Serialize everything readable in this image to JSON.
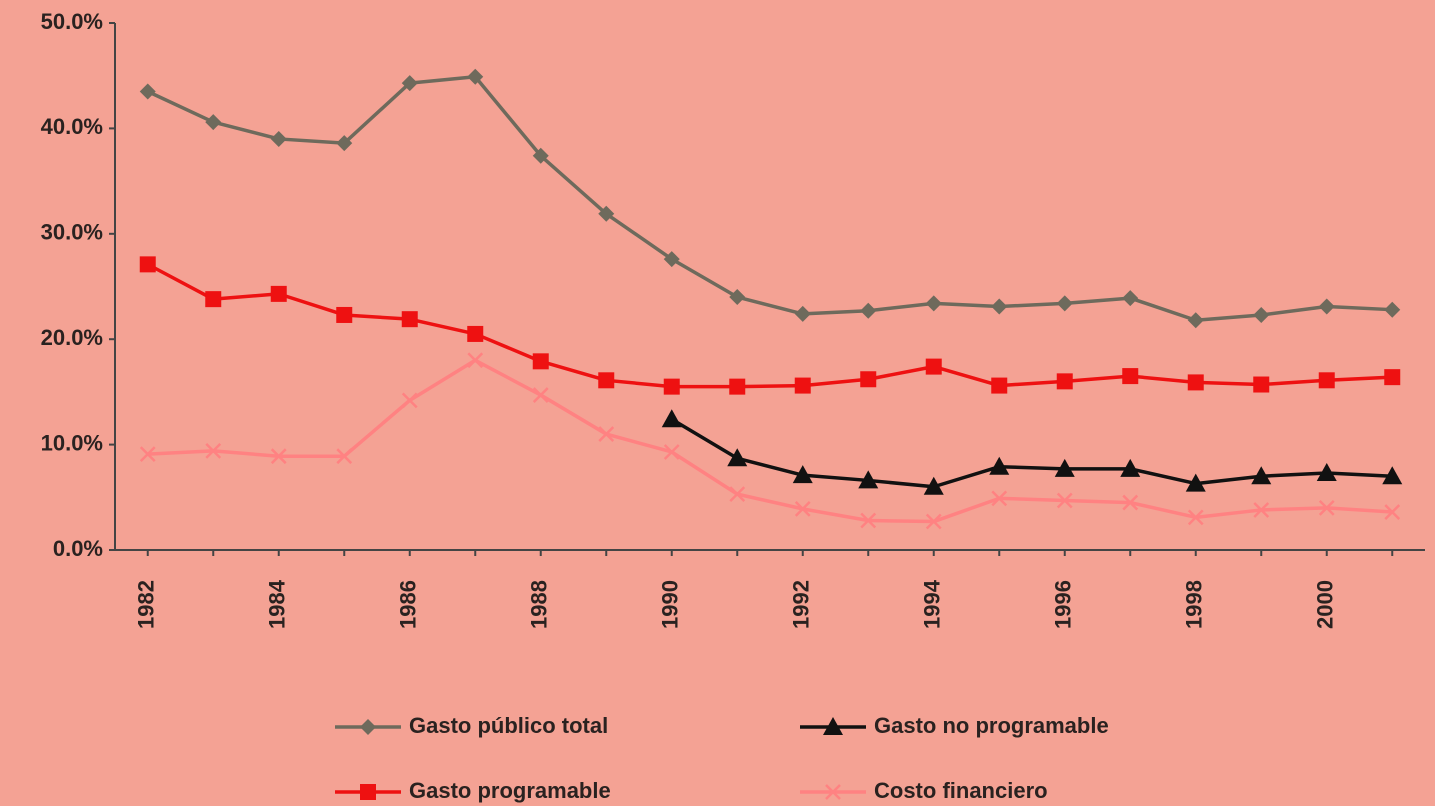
{
  "chart_data": {
    "type": "line",
    "categories": [
      "1982",
      null,
      "1984",
      null,
      "1986",
      null,
      "1988",
      null,
      "1990",
      null,
      "1992",
      null,
      "1994",
      null,
      "1996",
      null,
      "1998",
      null,
      "2000",
      null
    ],
    "ylim": [
      0,
      50
    ],
    "yticks": [
      {
        "value": 0,
        "label": "0.0%"
      },
      {
        "value": 10,
        "label": "10.0%"
      },
      {
        "value": 20,
        "label": "20.0%"
      },
      {
        "value": 30,
        "label": "30.0%"
      },
      {
        "value": 40,
        "label": "40.0%"
      },
      {
        "value": 50,
        "label": "50.0%"
      }
    ],
    "series": [
      {
        "name": "Gasto público total",
        "color": "#6e6a5c",
        "marker": "diamond",
        "values": [
          43.5,
          40.6,
          39.0,
          38.6,
          44.3,
          44.9,
          37.4,
          31.9,
          27.6,
          24.0,
          22.4,
          22.7,
          23.4,
          23.1,
          23.4,
          23.9,
          21.8,
          22.3,
          23.1,
          22.8
        ]
      },
      {
        "name": "Gasto no programable",
        "color": "#111111",
        "marker": "triangle",
        "values": [
          null,
          null,
          null,
          null,
          null,
          null,
          null,
          null,
          12.4,
          8.7,
          7.1,
          6.6,
          6.0,
          7.9,
          7.7,
          7.7,
          6.3,
          7.0,
          7.3,
          7.0
        ]
      },
      {
        "name": "Gasto programable",
        "color": "#ee1111",
        "marker": "square",
        "values": [
          27.1,
          23.8,
          24.3,
          22.3,
          21.9,
          20.5,
          17.9,
          16.1,
          15.5,
          15.5,
          15.6,
          16.2,
          17.4,
          15.6,
          16.0,
          16.5,
          15.9,
          15.7,
          16.1,
          16.4
        ]
      },
      {
        "name": "Costo financiero",
        "color": "#ff8282",
        "marker": "x",
        "values": [
          9.1,
          9.4,
          8.9,
          8.9,
          14.2,
          18.0,
          14.7,
          11.0,
          9.3,
          5.3,
          3.9,
          2.8,
          2.7,
          4.9,
          4.7,
          4.5,
          3.1,
          3.8,
          4.0,
          3.6
        ]
      }
    ]
  }
}
